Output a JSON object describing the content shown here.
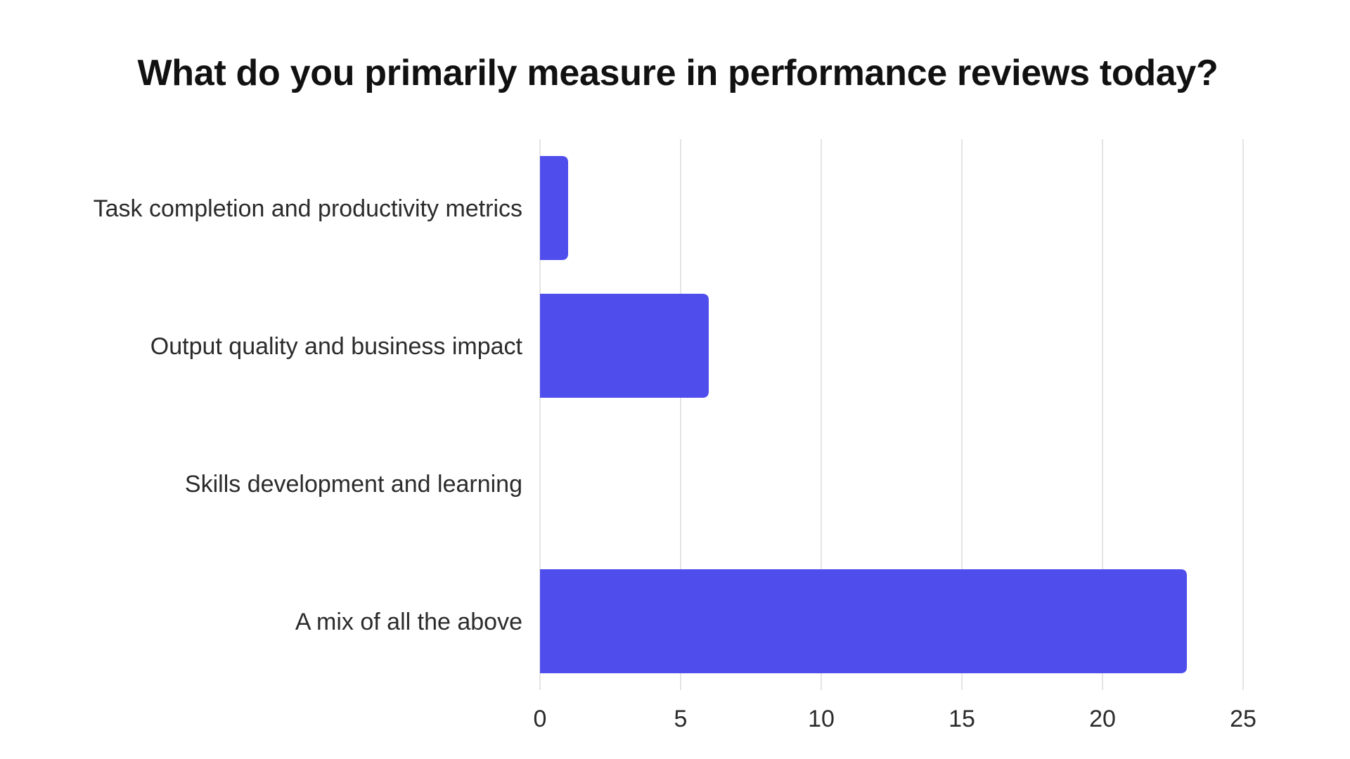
{
  "chart_data": {
    "type": "bar",
    "orientation": "horizontal",
    "title": "What do you primarily measure in performance reviews today?",
    "categories": [
      "Task completion and productivity metrics",
      "Output quality and business impact",
      "Skills development and learning",
      "A mix of all the above"
    ],
    "values": [
      1,
      6,
      0,
      23
    ],
    "xlim": [
      0,
      25
    ],
    "xticks": [
      0,
      5,
      10,
      15,
      20,
      25
    ],
    "xlabel": "",
    "ylabel": "",
    "grid": true,
    "bar_color": "#4f4eec"
  }
}
